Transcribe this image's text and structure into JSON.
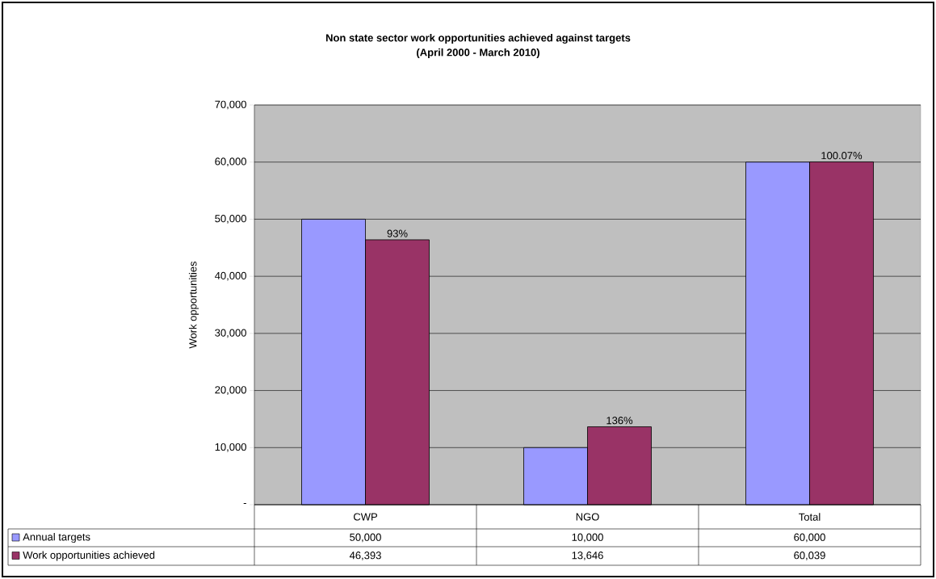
{
  "chart_data": {
    "type": "bar",
    "title": "Non state sector work opportunities achieved against targets",
    "subtitle": "(April 2000 - March 2010)",
    "ylabel": "Work opportunities",
    "categories": [
      "CWP",
      "NGO",
      "Total"
    ],
    "series": [
      {
        "name": "Annual targets",
        "color": "#9999ff",
        "values": [
          50000,
          10000,
          60000
        ],
        "value_labels": [
          "50,000",
          "10,000",
          "60,000"
        ]
      },
      {
        "name": "Work opportunities achieved",
        "color": "#993366",
        "values": [
          46393,
          13646,
          60039
        ],
        "value_labels": [
          "46,393",
          "13,646",
          "60,039"
        ]
      }
    ],
    "ylim": [
      0,
      70000
    ],
    "yticks": [
      {
        "value": 0,
        "label": "-"
      },
      {
        "value": 10000,
        "label": "10,000"
      },
      {
        "value": 20000,
        "label": "20,000"
      },
      {
        "value": 30000,
        "label": "30,000"
      },
      {
        "value": 40000,
        "label": "40,000"
      },
      {
        "value": 50000,
        "label": "50,000"
      },
      {
        "value": 60000,
        "label": "60,000"
      },
      {
        "value": 70000,
        "label": "70,000"
      }
    ],
    "grid": "y",
    "legend": "bottom left",
    "annotations": [
      {
        "text": "93%",
        "x": "CWP",
        "y": 46393
      },
      {
        "text": "136%",
        "x": "NGO",
        "y": 13646
      },
      {
        "text": "100.07%",
        "x": "Total",
        "y": 60039
      }
    ]
  }
}
